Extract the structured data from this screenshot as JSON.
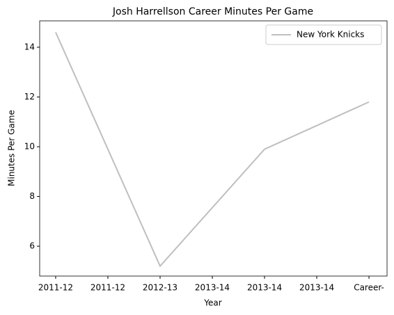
{
  "chart_data": {
    "type": "line",
    "title": "Josh Harrellson Career Minutes Per Game",
    "x_label": "Year",
    "y_label": "Minutes Per Game",
    "x": [
      0,
      1,
      2,
      3
    ],
    "series": [
      {
        "name": "New York Knicks",
        "color": "#bfbfbf",
        "values": [
          14.6,
          5.2,
          9.9,
          11.8
        ]
      }
    ],
    "xlim": [
      -0.153,
      3.173
    ],
    "xticks": [
      {
        "value": 0,
        "label": "2011-12"
      },
      {
        "value": 0.5,
        "label": "2011-12"
      },
      {
        "value": 1,
        "label": "2012-13"
      },
      {
        "value": 1.5,
        "label": "2013-14"
      },
      {
        "value": 2,
        "label": "2013-14"
      },
      {
        "value": 2.5,
        "label": "2013-14"
      },
      {
        "value": 3,
        "label": "Career-"
      }
    ],
    "ylim": [
      4.8,
      15.06
    ],
    "yticks": [
      6,
      8,
      10,
      12,
      14
    ],
    "grid": false,
    "legend": "upper right"
  }
}
